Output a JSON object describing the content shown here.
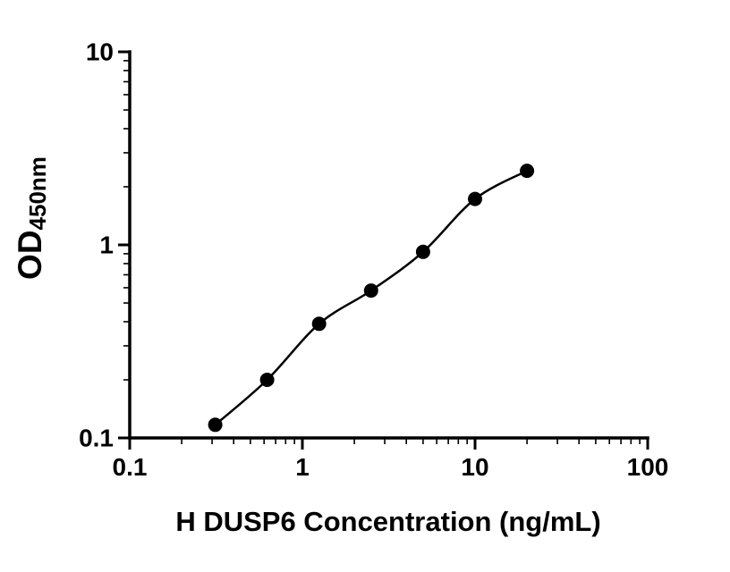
{
  "chart_data": {
    "type": "scatter",
    "title": "",
    "xlabel": "H DUSP6 Concentration (ng/mL)",
    "ylabel_main": "OD",
    "ylabel_sub": "450nm",
    "x_scale": "log",
    "y_scale": "log",
    "xlim": [
      0.1,
      100
    ],
    "ylim": [
      0.1,
      10
    ],
    "x_ticks": [
      0.1,
      1,
      10,
      100
    ],
    "x_tick_labels": [
      "0.1",
      "1",
      "10",
      "100"
    ],
    "y_ticks": [
      0.1,
      1,
      10
    ],
    "y_tick_labels": [
      "0.1",
      "1",
      "10"
    ],
    "grid": false,
    "legend": "none",
    "series": [
      {
        "x": [
          0.313,
          0.625,
          1.25,
          2.5,
          5,
          10,
          20
        ],
        "y": [
          0.117,
          0.2,
          0.39,
          0.58,
          0.92,
          1.73,
          2.42
        ],
        "marker": "filled-circle",
        "fit": "smooth-curve"
      }
    ],
    "colors": {
      "axis": "#000000",
      "marker": "#000000",
      "curve": "#000000",
      "background": "#ffffff"
    }
  }
}
